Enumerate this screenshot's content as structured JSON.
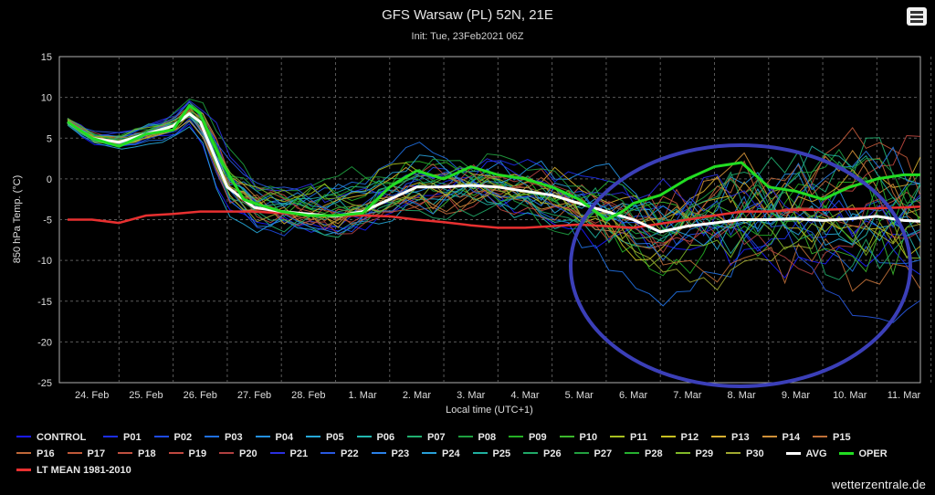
{
  "chart_data": {
    "type": "line",
    "title": "GFS Warsaw (PL) 52N, 21E",
    "subtitle": "Init: Tue, 23Feb2021 06Z",
    "xlabel": "Local time (UTC+1)",
    "ylabel": "850 hPa Temp. (°C)",
    "ylim": [
      -25,
      15
    ],
    "yticks": [
      15,
      10,
      5,
      0,
      -5,
      -10,
      -15,
      -20,
      -25
    ],
    "x_day_range": [
      23.55,
      39.0
    ],
    "xticks": [
      {
        "label": "24. Feb",
        "day": 24
      },
      {
        "label": "25. Feb",
        "day": 25
      },
      {
        "label": "26. Feb",
        "day": 26
      },
      {
        "label": "27. Feb",
        "day": 27
      },
      {
        "label": "28. Feb",
        "day": 28
      },
      {
        "label": "1. Mar",
        "day": 29
      },
      {
        "label": "2. Mar",
        "day": 30
      },
      {
        "label": "3. Mar",
        "day": 31
      },
      {
        "label": "4. Mar",
        "day": 32
      },
      {
        "label": "5. Mar",
        "day": 33
      },
      {
        "label": "6. Mar",
        "day": 34
      },
      {
        "label": "7. Mar",
        "day": 35
      },
      {
        "label": "8. Mar",
        "day": 36
      },
      {
        "label": "9. Mar",
        "day": 37
      },
      {
        "label": "10. Mar",
        "day": 38
      },
      {
        "label": "11. Mar",
        "day": 39
      }
    ],
    "grid": true,
    "legend_placement": "bottom",
    "highlight": {
      "shape": "ellipse",
      "color": "#3b3fb8",
      "note": ""
    },
    "named_series": [
      {
        "name": "AVG",
        "color": "#ffffff",
        "width": 3,
        "points": [
          [
            23.55,
            7
          ],
          [
            24,
            5
          ],
          [
            24.5,
            4.5
          ],
          [
            25,
            5.5
          ],
          [
            25.5,
            6.5
          ],
          [
            25.8,
            8
          ],
          [
            26,
            7
          ],
          [
            26.5,
            -1
          ],
          [
            27,
            -3.5
          ],
          [
            27.5,
            -4
          ],
          [
            28,
            -4.3
          ],
          [
            28.5,
            -4.6
          ],
          [
            29,
            -4
          ],
          [
            29.5,
            -2.5
          ],
          [
            30,
            -1
          ],
          [
            30.5,
            -1
          ],
          [
            31,
            -0.8
          ],
          [
            31.5,
            -1
          ],
          [
            32,
            -1.5
          ],
          [
            32.5,
            -2
          ],
          [
            33,
            -3
          ],
          [
            33.5,
            -4
          ],
          [
            34,
            -5
          ],
          [
            34.5,
            -6.5
          ],
          [
            35,
            -5.8
          ],
          [
            35.5,
            -5.4
          ],
          [
            36,
            -5
          ],
          [
            36.5,
            -5
          ],
          [
            37,
            -4.9
          ],
          [
            37.5,
            -5.1
          ],
          [
            38,
            -4.9
          ],
          [
            38.5,
            -4.6
          ],
          [
            39,
            -5.1
          ],
          [
            39.3,
            -5.2
          ]
        ]
      },
      {
        "name": "OPER",
        "color": "#22dd22",
        "width": 3,
        "points": [
          [
            23.55,
            7
          ],
          [
            24,
            5
          ],
          [
            24.5,
            4
          ],
          [
            25,
            5.5
          ],
          [
            25.5,
            6
          ],
          [
            25.8,
            9
          ],
          [
            26,
            8
          ],
          [
            26.4,
            2
          ],
          [
            26.8,
            -2.5
          ],
          [
            27,
            -3
          ],
          [
            27.5,
            -4
          ],
          [
            28,
            -4.5
          ],
          [
            28.5,
            -4.5
          ],
          [
            29,
            -4.2
          ],
          [
            29.5,
            -1
          ],
          [
            30,
            1
          ],
          [
            30.5,
            0
          ],
          [
            31,
            1.5
          ],
          [
            31.5,
            0.5
          ],
          [
            32,
            0
          ],
          [
            32.5,
            -1
          ],
          [
            33,
            -2.5
          ],
          [
            33.5,
            -5
          ],
          [
            33.8,
            -4
          ],
          [
            34,
            -3
          ],
          [
            34.5,
            -2
          ],
          [
            35,
            0
          ],
          [
            35.5,
            1.5
          ],
          [
            36,
            2
          ],
          [
            36.5,
            -1
          ],
          [
            37,
            -1.5
          ],
          [
            37.5,
            -2.5
          ],
          [
            38,
            -1
          ],
          [
            38.5,
            0
          ],
          [
            39,
            0.5
          ],
          [
            39.3,
            0.5
          ]
        ]
      },
      {
        "name": "LT MEAN 1981-2010",
        "color": "#e83030",
        "width": 2.5,
        "points": [
          [
            23.55,
            -5
          ],
          [
            24,
            -5
          ],
          [
            24.5,
            -5.4
          ],
          [
            25,
            -4.5
          ],
          [
            25.5,
            -4.3
          ],
          [
            26,
            -4
          ],
          [
            26.5,
            -4
          ],
          [
            27,
            -4
          ],
          [
            27.5,
            -4.2
          ],
          [
            28,
            -4.4
          ],
          [
            28.5,
            -4.5
          ],
          [
            29,
            -4.5
          ],
          [
            29.5,
            -4.6
          ],
          [
            30,
            -5
          ],
          [
            30.5,
            -5.3
          ],
          [
            31,
            -5.7
          ],
          [
            31.5,
            -6
          ],
          [
            32,
            -6
          ],
          [
            32.5,
            -5.8
          ],
          [
            33,
            -5.6
          ],
          [
            33.5,
            -5.8
          ],
          [
            34,
            -6
          ],
          [
            34.5,
            -5.5
          ],
          [
            35,
            -5
          ],
          [
            35.5,
            -4.5
          ],
          [
            36,
            -4
          ],
          [
            36.5,
            -4
          ],
          [
            37,
            -3.8
          ],
          [
            37.5,
            -3.8
          ],
          [
            38,
            -3.7
          ],
          [
            38.5,
            -3.6
          ],
          [
            39,
            -3.5
          ],
          [
            39.3,
            -3.4
          ]
        ]
      }
    ],
    "members": {
      "names": [
        "CONTROL",
        "P01",
        "P02",
        "P03",
        "P04",
        "P05",
        "P06",
        "P07",
        "P08",
        "P09",
        "P10",
        "P11",
        "P12",
        "P13",
        "P14",
        "P15",
        "P16",
        "P17",
        "P18",
        "P19",
        "P20",
        "P21",
        "P22",
        "P23",
        "P24",
        "P25",
        "P26",
        "P27",
        "P28",
        "P29",
        "P30"
      ],
      "colors": [
        "#1a1aff",
        "#1c2ef0",
        "#1e4be8",
        "#1f6fe0",
        "#2390e0",
        "#26a8d8",
        "#22b8b0",
        "#20b070",
        "#1ea040",
        "#24b024",
        "#3cb82c",
        "#a8c020",
        "#c8c020",
        "#d8b030",
        "#d09038",
        "#c07038",
        "#c06838",
        "#c05838",
        "#c05040",
        "#c04840",
        "#b04040",
        "#2a30e0",
        "#2858e0",
        "#2a80e8",
        "#28a0d8",
        "#20b0a0",
        "#20a868",
        "#22a040",
        "#26b030",
        "#80b828",
        "#a0a830"
      ],
      "spread_points": [
        [
          23.55,
          0.5
        ],
        [
          24,
          0.8
        ],
        [
          25,
          1
        ],
        [
          25.8,
          1.2
        ],
        [
          26.3,
          2.5
        ],
        [
          26.8,
          2.5
        ],
        [
          27,
          2.5
        ],
        [
          28,
          2.5
        ],
        [
          29,
          2.8
        ],
        [
          30,
          3
        ],
        [
          31,
          3
        ],
        [
          32,
          3.2
        ],
        [
          33,
          3.5
        ],
        [
          34,
          4.5
        ],
        [
          35,
          5
        ],
        [
          36,
          6
        ],
        [
          37,
          6.5
        ],
        [
          38,
          7
        ],
        [
          39,
          7.5
        ],
        [
          39.3,
          7.5
        ]
      ]
    }
  },
  "legend": {
    "items": [
      {
        "label": "CONTROL",
        "color": "#1a1aff"
      },
      {
        "label": "P01",
        "color": "#1c2ef0"
      },
      {
        "label": "P02",
        "color": "#1e4be8"
      },
      {
        "label": "P03",
        "color": "#1f6fe0"
      },
      {
        "label": "P04",
        "color": "#2390e0"
      },
      {
        "label": "P05",
        "color": "#26a8d8"
      },
      {
        "label": "P06",
        "color": "#22b8b0"
      },
      {
        "label": "P07",
        "color": "#20b070"
      },
      {
        "label": "P08",
        "color": "#1ea040"
      },
      {
        "label": "P09",
        "color": "#24b024"
      },
      {
        "label": "P10",
        "color": "#3cb82c"
      },
      {
        "label": "P11",
        "color": "#a8c020"
      },
      {
        "label": "P12",
        "color": "#c8c020"
      },
      {
        "label": "P13",
        "color": "#d8b030"
      },
      {
        "label": "P14",
        "color": "#d09038"
      },
      {
        "label": "P15",
        "color": "#c07038"
      },
      {
        "label": "P16",
        "color": "#c06838"
      },
      {
        "label": "P17",
        "color": "#c05838"
      },
      {
        "label": "P18",
        "color": "#c05040"
      },
      {
        "label": "P19",
        "color": "#c04840"
      },
      {
        "label": "P20",
        "color": "#b04040"
      },
      {
        "label": "P21",
        "color": "#2a30e0"
      },
      {
        "label": "P22",
        "color": "#2858e0"
      },
      {
        "label": "P23",
        "color": "#2a80e8"
      },
      {
        "label": "P24",
        "color": "#28a0d8"
      },
      {
        "label": "P25",
        "color": "#20b0a0"
      },
      {
        "label": "P26",
        "color": "#20a868"
      },
      {
        "label": "P27",
        "color": "#22a040"
      },
      {
        "label": "P28",
        "color": "#26b030"
      },
      {
        "label": "P29",
        "color": "#80b828"
      },
      {
        "label": "P30",
        "color": "#a0a830"
      },
      {
        "label": "AVG",
        "color": "#ffffff"
      },
      {
        "label": "OPER",
        "color": "#22dd22"
      },
      {
        "label": "LT MEAN 1981-2010",
        "color": "#e83030"
      }
    ]
  },
  "credit": "wetterzentrale.de"
}
